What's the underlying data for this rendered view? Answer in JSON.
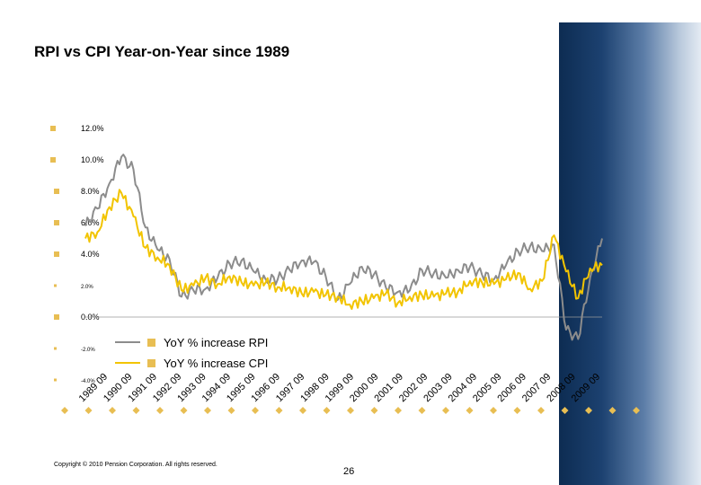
{
  "title": "RPI vs CPI Year-on-Year since 1989",
  "footer": {
    "copyright": "Copyright © 2010 Pension Corporation. All rights reserved.",
    "page_number": "26"
  },
  "colors": {
    "rpi": "#8c8c8c",
    "cpi": "#f2c400",
    "bullet": "#e8be53",
    "band_dark": "#0d2c52"
  },
  "chart_data": {
    "type": "line",
    "title": "",
    "ylim": [
      -4,
      13
    ],
    "grid": false,
    "legend_position": "bottom-left",
    "y_ticks": [
      {
        "value": 12,
        "label": "12.0%"
      },
      {
        "value": 10,
        "label": "10.0%"
      },
      {
        "value": 8,
        "label": "8.0%"
      },
      {
        "value": 6,
        "label": "6.0%"
      },
      {
        "value": 4,
        "label": "4.0%"
      },
      {
        "value": 2,
        "label": "2.0%"
      },
      {
        "value": 0,
        "label": "0.0%"
      },
      {
        "value": -2,
        "label": "-2.0%"
      },
      {
        "value": -4,
        "label": "-4.0%"
      }
    ],
    "x_ticks": [
      "1989 09",
      "1990 09",
      "1991 09",
      "1992 09",
      "1993 09",
      "1994 09",
      "1995 09",
      "1996 09",
      "1997 09",
      "1998 09",
      "1999 09",
      "2000 09",
      "2001 09",
      "2002 09",
      "2003 09",
      "2004 09",
      "2005 09",
      "2006 09",
      "2007 09",
      "2008 09",
      "2009 09"
    ],
    "x": [
      1989.0,
      1989.5,
      1990.0,
      1990.5,
      1991.0,
      1991.5,
      1992.0,
      1992.5,
      1993.0,
      1993.5,
      1994.0,
      1994.5,
      1995.0,
      1995.5,
      1996.0,
      1996.5,
      1997.0,
      1997.5,
      1998.0,
      1998.5,
      1999.0,
      1999.5,
      2000.0,
      2000.5,
      2001.0,
      2001.5,
      2002.0,
      2002.5,
      2003.0,
      2003.5,
      2004.0,
      2004.5,
      2005.0,
      2005.5,
      2006.0,
      2006.5,
      2007.0,
      2007.5,
      2008.0,
      2008.5,
      2009.0,
      2009.5,
      2010.0,
      2010.5
    ],
    "series": [
      {
        "name": "YoY % increase RPI",
        "values": [
          5.8,
          6.9,
          8.5,
          10.2,
          9.4,
          5.7,
          4.3,
          3.7,
          1.3,
          1.7,
          1.8,
          2.5,
          3.4,
          3.6,
          2.9,
          2.4,
          2.4,
          3.0,
          3.6,
          3.5,
          2.6,
          1.1,
          2.1,
          3.2,
          2.7,
          1.9,
          1.6,
          1.7,
          3.0,
          2.8,
          2.5,
          3.0,
          3.2,
          2.7,
          2.4,
          3.3,
          4.2,
          4.5,
          4.2,
          4.6,
          -0.8,
          -1.4,
          2.5,
          5.0
        ]
      },
      {
        "name": "YoY % increase CPI",
        "values": [
          5.0,
          5.4,
          7.0,
          7.9,
          6.4,
          4.4,
          3.8,
          3.3,
          1.7,
          2.0,
          2.5,
          2.1,
          2.6,
          2.2,
          2.0,
          2.2,
          1.9,
          1.9,
          1.5,
          1.6,
          1.4,
          1.3,
          0.8,
          1.0,
          1.2,
          1.5,
          0.9,
          1.3,
          1.4,
          1.3,
          1.5,
          1.6,
          2.3,
          2.2,
          2.1,
          2.4,
          2.8,
          1.8,
          2.3,
          5.2,
          2.9,
          1.2,
          3.1,
          3.3
        ]
      }
    ],
    "legend": [
      {
        "label": "YoY % increase RPI"
      },
      {
        "label": "YoY % increase CPI"
      }
    ]
  }
}
